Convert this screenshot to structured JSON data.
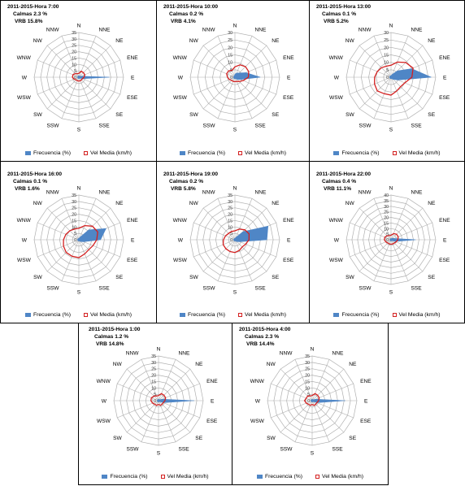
{
  "legend": {
    "freq_label": "Frecuencia (%)",
    "vel_label": "Vel Media (km/h)"
  },
  "colors": {
    "frequency": "#4f86c6",
    "velocity": "#d42020",
    "grid": "#b0b0b0"
  },
  "directions": [
    "N",
    "NNE",
    "NE",
    "ENE",
    "E",
    "ESE",
    "SE",
    "SSE",
    "S",
    "SSW",
    "SW",
    "WSW",
    "W",
    "WNW",
    "NW",
    "NNW"
  ],
  "panels": [
    {
      "title": "2011-2015-Hora 7:00",
      "calmas": "Calmas 2.3 %",
      "vrb": "VRB  15.8%"
    },
    {
      "title": "2011-2015-Hora 10:00",
      "calmas": "Calmas 0.2 %",
      "vrb": "VRB  4.1%"
    },
    {
      "title": "2011-2015-Hora 13:00",
      "calmas": "Calmas 0.1 %",
      "vrb": "VRB 5.2%"
    },
    {
      "title": "2011-2015-Hora 16:00",
      "calmas": "Calmas 0.1 %",
      "vrb": "VRB 1.6%"
    },
    {
      "title": "2011-2015-Hora 19:00",
      "calmas": "Calmas 0.2 %",
      "vrb": "VRB  5.8%"
    },
    {
      "title": "2011-2015-Hora 22:00",
      "calmas": "Calmas 0.4 %",
      "vrb": "VRB 11.1%"
    },
    {
      "title": "2011-2015-Hora 1:00",
      "calmas": "Calmas 1.2 %",
      "vrb": "VRB  14.8%"
    },
    {
      "title": "2011-2015-Hora 4:00",
      "calmas": "Calmas 2.3 %",
      "vrb": "VRB  14.4%"
    }
  ],
  "chart_data": [
    {
      "type": "radar",
      "rmax": 35,
      "ticks": [
        0,
        5,
        10,
        15,
        20,
        25,
        30,
        35
      ],
      "series": [
        {
          "name": "Frecuencia (%)",
          "values": [
            1,
            1,
            1,
            2,
            24,
            3,
            1,
            1,
            1,
            1,
            1,
            1,
            1,
            1,
            1,
            1
          ]
        },
        {
          "name": "Vel Media (km/h)",
          "values": [
            3,
            5,
            5,
            5,
            4,
            3,
            3,
            3,
            3,
            3,
            3,
            4,
            5,
            5,
            4,
            3
          ]
        }
      ]
    },
    {
      "type": "radar",
      "rmax": 30,
      "ticks": [
        0,
        5,
        10,
        15,
        20,
        25,
        30
      ],
      "series": [
        {
          "name": "Frecuencia (%)",
          "values": [
            2,
            3,
            4,
            8,
            17,
            4,
            2,
            1,
            1,
            1,
            1,
            1,
            1,
            1,
            1,
            1
          ]
        },
        {
          "name": "Vel Media (km/h)",
          "values": [
            7,
            9,
            10,
            10,
            9,
            6,
            4,
            3,
            3,
            3,
            3,
            4,
            5,
            6,
            6,
            5
          ]
        }
      ]
    },
    {
      "type": "radar",
      "rmax": 30,
      "ticks": [
        0,
        5,
        10,
        15,
        20,
        25,
        30
      ],
      "series": [
        {
          "name": "Frecuencia (%)",
          "values": [
            1,
            2,
            6,
            15,
            27,
            5,
            2,
            1,
            1,
            1,
            1,
            1,
            1,
            1,
            1,
            1
          ]
        },
        {
          "name": "Vel Media (km/h)",
          "values": [
            8,
            11,
            14,
            16,
            14,
            10,
            9,
            10,
            12,
            12,
            13,
            12,
            11,
            10,
            9,
            8
          ]
        }
      ]
    },
    {
      "type": "radar",
      "rmax": 35,
      "ticks": [
        0,
        5,
        10,
        15,
        20,
        25,
        30,
        35
      ],
      "series": [
        {
          "name": "Frecuencia (%)",
          "values": [
            1,
            2,
            11,
            23,
            17,
            4,
            2,
            1,
            1,
            1,
            1,
            1,
            1,
            1,
            1,
            1
          ]
        },
        {
          "name": "Vel Media (km/h)",
          "values": [
            9,
            12,
            15,
            16,
            14,
            12,
            11,
            12,
            14,
            14,
            14,
            13,
            12,
            11,
            10,
            9
          ]
        }
      ]
    },
    {
      "type": "radar",
      "rmax": 35,
      "ticks": [
        0,
        5,
        10,
        15,
        20,
        25,
        30,
        35
      ],
      "series": [
        {
          "name": "Frecuencia (%)",
          "values": [
            1,
            2,
            9,
            28,
            25,
            4,
            2,
            1,
            1,
            1,
            1,
            1,
            1,
            1,
            1,
            1
          ]
        },
        {
          "name": "Vel Media (km/h)",
          "values": [
            7,
            9,
            11,
            12,
            11,
            9,
            8,
            9,
            10,
            10,
            10,
            10,
            9,
            8,
            7,
            7
          ]
        }
      ]
    },
    {
      "type": "radar",
      "rmax": 40,
      "ticks": [
        0,
        5,
        10,
        15,
        20,
        25,
        30,
        35,
        40
      ],
      "series": [
        {
          "name": "Frecuencia (%)",
          "values": [
            1,
            1,
            2,
            3,
            22,
            4,
            1,
            1,
            1,
            1,
            1,
            1,
            1,
            1,
            1,
            1
          ]
        },
        {
          "name": "Vel Media (km/h)",
          "values": [
            4,
            6,
            7,
            7,
            6,
            5,
            4,
            4,
            4,
            4,
            4,
            5,
            6,
            6,
            5,
            4
          ]
        }
      ]
    },
    {
      "type": "radar",
      "rmax": 35,
      "ticks": [
        0,
        5,
        10,
        15,
        20,
        25,
        30,
        35
      ],
      "series": [
        {
          "name": "Frecuencia (%)",
          "values": [
            1,
            1,
            1,
            3,
            28,
            4,
            1,
            1,
            1,
            1,
            1,
            1,
            1,
            1,
            1,
            1
          ]
        },
        {
          "name": "Vel Media (km/h)",
          "values": [
            4,
            6,
            6,
            6,
            5,
            4,
            4,
            4,
            3,
            4,
            4,
            5,
            6,
            6,
            5,
            4
          ]
        }
      ]
    },
    {
      "type": "radar",
      "rmax": 35,
      "ticks": [
        0,
        5,
        10,
        15,
        20,
        25,
        30,
        35
      ],
      "series": [
        {
          "name": "Frecuencia (%)",
          "values": [
            1,
            1,
            1,
            3,
            26,
            4,
            1,
            1,
            1,
            1,
            1,
            1,
            1,
            1,
            1,
            1
          ]
        },
        {
          "name": "Vel Media (km/h)",
          "values": [
            4,
            6,
            6,
            6,
            5,
            4,
            4,
            4,
            3,
            4,
            4,
            5,
            6,
            5,
            5,
            4
          ]
        }
      ]
    }
  ]
}
